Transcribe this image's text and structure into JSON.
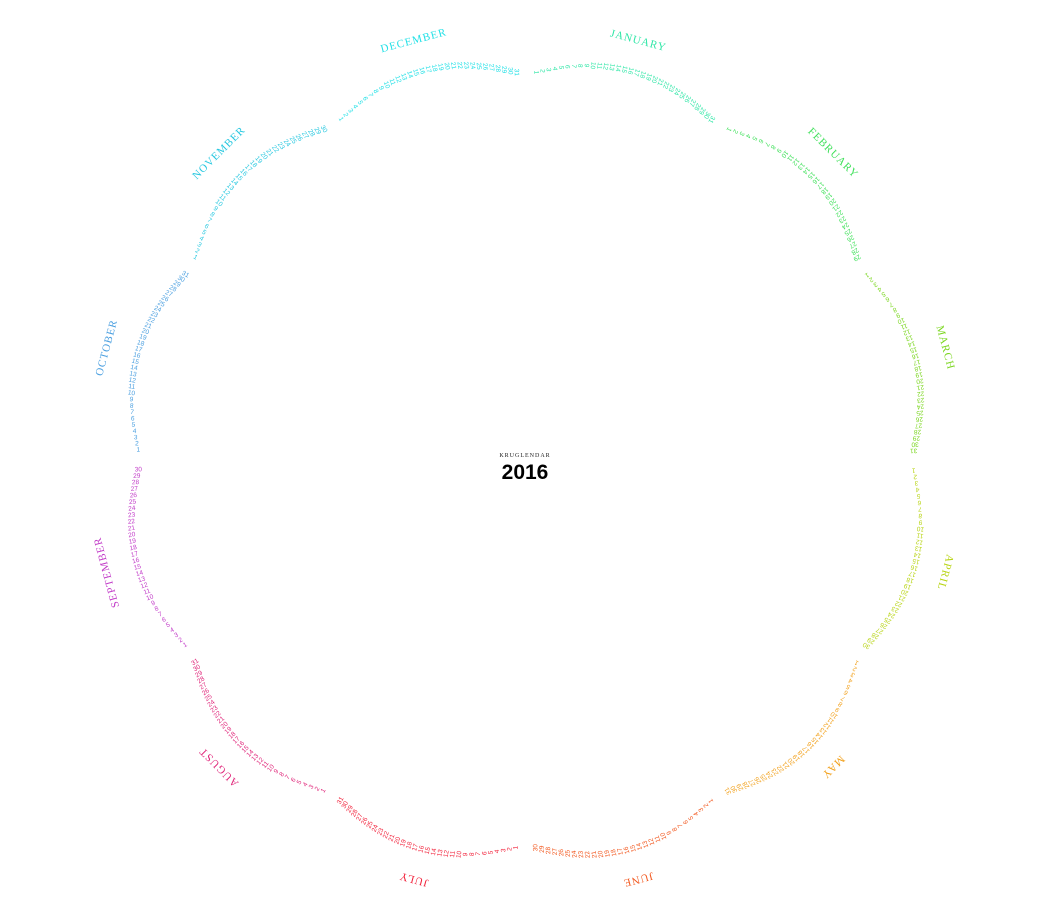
{
  "brand": "KRUGLENDAR",
  "year": "2016",
  "months": [
    {
      "name": "JANUARY",
      "days": 31,
      "color": "#2ee6a6"
    },
    {
      "name": "FEBRUARY",
      "days": 29,
      "color": "#3fe05a"
    },
    {
      "name": "MARCH",
      "days": 31,
      "color": "#7ad61e"
    },
    {
      "name": "APRIL",
      "days": 30,
      "color": "#b8d414"
    },
    {
      "name": "MAY",
      "days": 31,
      "color": "#f2a11c"
    },
    {
      "name": "JUNE",
      "days": 30,
      "color": "#f2561c"
    },
    {
      "name": "JULY",
      "days": 31,
      "color": "#f2213a"
    },
    {
      "name": "AUGUST",
      "days": 31,
      "color": "#e0267a"
    },
    {
      "name": "SEPTEMBER",
      "days": 30,
      "color": "#c23cc8"
    },
    {
      "name": "OCTOBER",
      "days": 31,
      "color": "#4a9fe0"
    },
    {
      "name": "NOVEMBER",
      "days": 30,
      "color": "#28c8e0"
    },
    {
      "name": "DECEMBER",
      "days": 31,
      "color": "#20e0e6"
    }
  ]
}
